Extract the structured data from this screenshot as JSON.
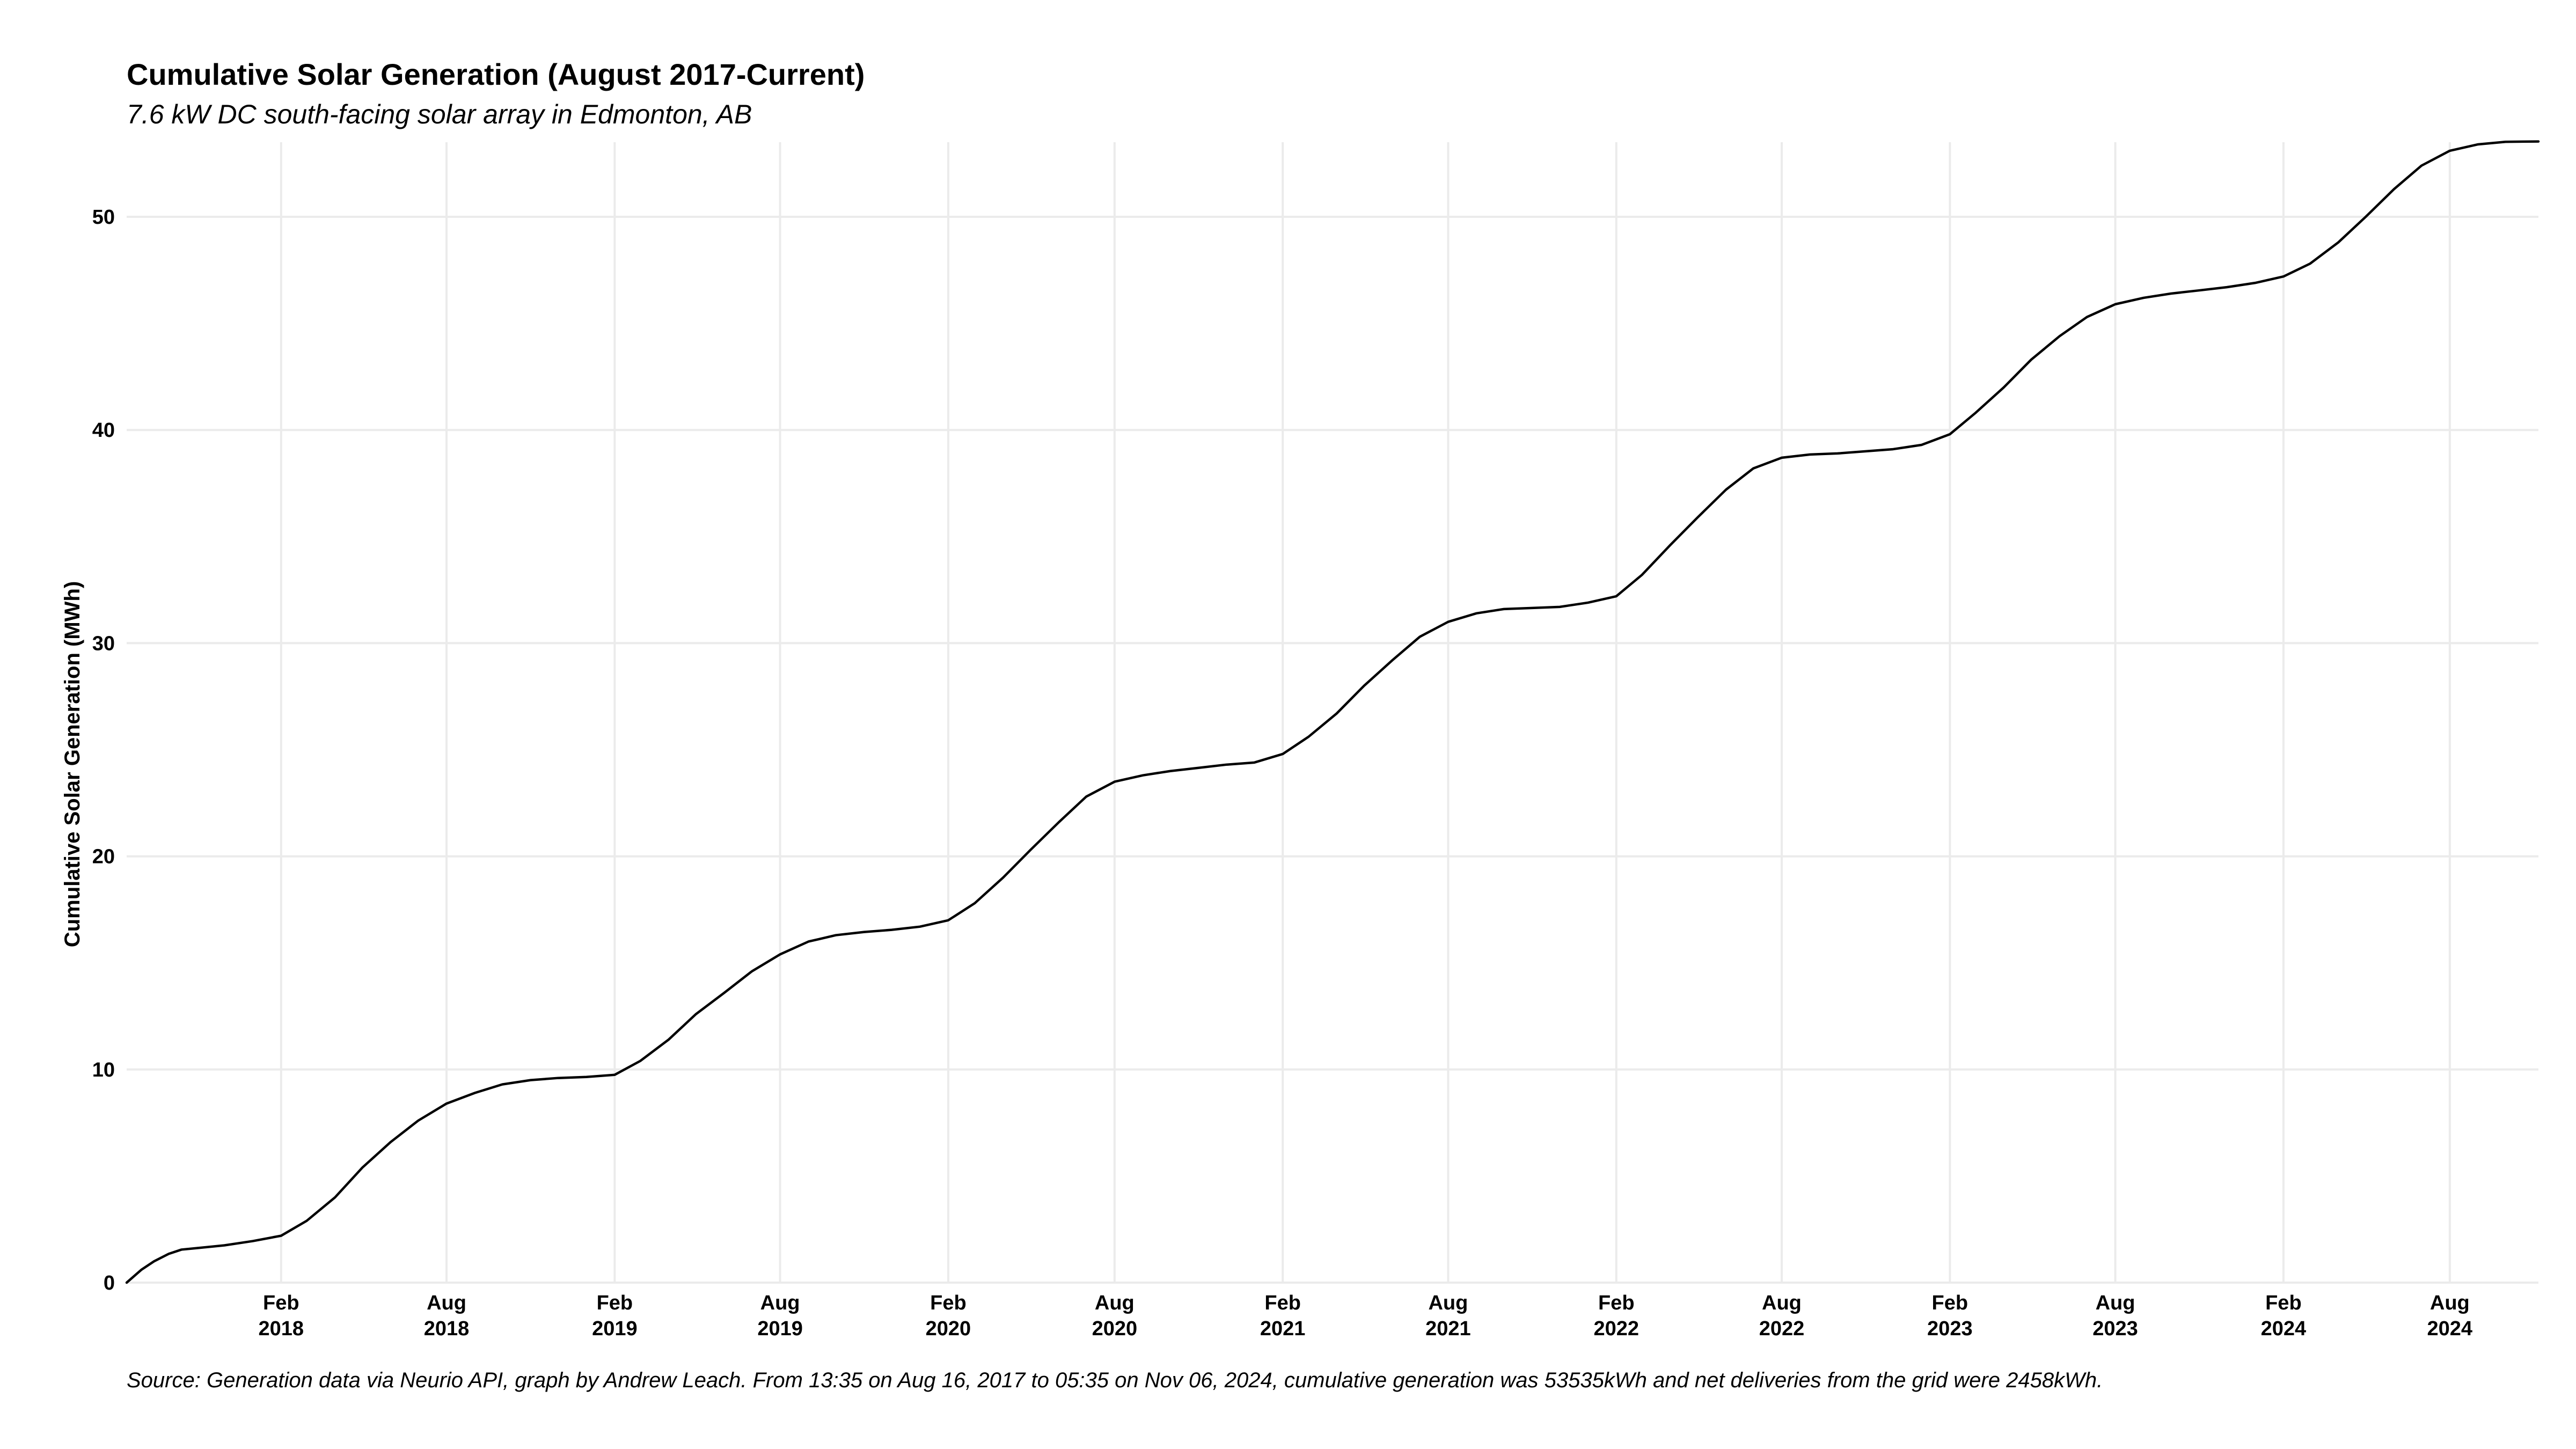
{
  "chart_data": {
    "type": "line",
    "title": "Cumulative Solar Generation (August 2017-Current)",
    "subtitle": "7.6 kW DC south-facing solar array in Edmonton, AB",
    "caption": "Source: Generation data via Neurio API, graph by Andrew Leach. From 13:35 on Aug 16, 2017 to 05:35 on Nov 06, 2024, cumulative generation was 53535kWh and net deliveries from the grid were 2458kWh.",
    "xlabel": "",
    "ylabel": "Cumulative Solar Generation (MWh)",
    "xlim": [
      "2017-08-16",
      "2024-11-06"
    ],
    "ylim": [
      0,
      53.5
    ],
    "grid": true,
    "legend": "none",
    "y_ticks": [
      0,
      10,
      20,
      30,
      40,
      50
    ],
    "x_ticks": [
      {
        "date": "2018-02-01",
        "month": "Feb",
        "year": "2018"
      },
      {
        "date": "2018-08-01",
        "month": "Aug",
        "year": "2018"
      },
      {
        "date": "2019-02-01",
        "month": "Feb",
        "year": "2019"
      },
      {
        "date": "2019-08-01",
        "month": "Aug",
        "year": "2019"
      },
      {
        "date": "2020-02-01",
        "month": "Feb",
        "year": "2020"
      },
      {
        "date": "2020-08-01",
        "month": "Aug",
        "year": "2020"
      },
      {
        "date": "2021-02-01",
        "month": "Feb",
        "year": "2021"
      },
      {
        "date": "2021-08-01",
        "month": "Aug",
        "year": "2021"
      },
      {
        "date": "2022-02-01",
        "month": "Feb",
        "year": "2022"
      },
      {
        "date": "2022-08-01",
        "month": "Aug",
        "year": "2022"
      },
      {
        "date": "2023-02-01",
        "month": "Feb",
        "year": "2023"
      },
      {
        "date": "2023-08-01",
        "month": "Aug",
        "year": "2023"
      },
      {
        "date": "2024-02-01",
        "month": "Feb",
        "year": "2024"
      },
      {
        "date": "2024-08-01",
        "month": "Aug",
        "year": "2024"
      }
    ],
    "series": [
      {
        "color": "#000000",
        "points": [
          {
            "x": "2017-08-16",
            "y": 0.0
          },
          {
            "x": "2017-09-01",
            "y": 0.6
          },
          {
            "x": "2017-09-15",
            "y": 1.0
          },
          {
            "x": "2017-10-01",
            "y": 1.35
          },
          {
            "x": "2017-10-15",
            "y": 1.55
          },
          {
            "x": "2017-11-01",
            "y": 1.62
          },
          {
            "x": "2017-12-01",
            "y": 1.75
          },
          {
            "x": "2018-01-01",
            "y": 1.95
          },
          {
            "x": "2018-02-01",
            "y": 2.2
          },
          {
            "x": "2018-03-01",
            "y": 2.9
          },
          {
            "x": "2018-04-01",
            "y": 4.0
          },
          {
            "x": "2018-05-01",
            "y": 5.4
          },
          {
            "x": "2018-06-01",
            "y": 6.6
          },
          {
            "x": "2018-07-01",
            "y": 7.6
          },
          {
            "x": "2018-08-01",
            "y": 8.4
          },
          {
            "x": "2018-09-01",
            "y": 8.9
          },
          {
            "x": "2018-10-01",
            "y": 9.3
          },
          {
            "x": "2018-11-01",
            "y": 9.5
          },
          {
            "x": "2018-12-01",
            "y": 9.6
          },
          {
            "x": "2019-01-01",
            "y": 9.65
          },
          {
            "x": "2019-02-01",
            "y": 9.75
          },
          {
            "x": "2019-03-01",
            "y": 10.4
          },
          {
            "x": "2019-04-01",
            "y": 11.4
          },
          {
            "x": "2019-05-01",
            "y": 12.6
          },
          {
            "x": "2019-06-01",
            "y": 13.6
          },
          {
            "x": "2019-07-01",
            "y": 14.6
          },
          {
            "x": "2019-08-01",
            "y": 15.4
          },
          {
            "x": "2019-09-01",
            "y": 16.0
          },
          {
            "x": "2019-10-01",
            "y": 16.3
          },
          {
            "x": "2019-11-01",
            "y": 16.45
          },
          {
            "x": "2019-12-01",
            "y": 16.55
          },
          {
            "x": "2020-01-01",
            "y": 16.7
          },
          {
            "x": "2020-02-01",
            "y": 17.0
          },
          {
            "x": "2020-03-01",
            "y": 17.8
          },
          {
            "x": "2020-04-01",
            "y": 19.0
          },
          {
            "x": "2020-05-01",
            "y": 20.3
          },
          {
            "x": "2020-06-01",
            "y": 21.6
          },
          {
            "x": "2020-07-01",
            "y": 22.8
          },
          {
            "x": "2020-08-01",
            "y": 23.5
          },
          {
            "x": "2020-09-01",
            "y": 23.8
          },
          {
            "x": "2020-10-01",
            "y": 24.0
          },
          {
            "x": "2020-11-01",
            "y": 24.15
          },
          {
            "x": "2020-12-01",
            "y": 24.3
          },
          {
            "x": "2021-01-01",
            "y": 24.4
          },
          {
            "x": "2021-02-01",
            "y": 24.8
          },
          {
            "x": "2021-03-01",
            "y": 25.6
          },
          {
            "x": "2021-04-01",
            "y": 26.7
          },
          {
            "x": "2021-05-01",
            "y": 28.0
          },
          {
            "x": "2021-06-01",
            "y": 29.2
          },
          {
            "x": "2021-07-01",
            "y": 30.3
          },
          {
            "x": "2021-08-01",
            "y": 31.0
          },
          {
            "x": "2021-09-01",
            "y": 31.4
          },
          {
            "x": "2021-10-01",
            "y": 31.6
          },
          {
            "x": "2021-11-01",
            "y": 31.65
          },
          {
            "x": "2021-12-01",
            "y": 31.7
          },
          {
            "x": "2022-01-01",
            "y": 31.9
          },
          {
            "x": "2022-02-01",
            "y": 32.2
          },
          {
            "x": "2022-03-01",
            "y": 33.2
          },
          {
            "x": "2022-04-01",
            "y": 34.6
          },
          {
            "x": "2022-05-01",
            "y": 35.9
          },
          {
            "x": "2022-06-01",
            "y": 37.2
          },
          {
            "x": "2022-07-01",
            "y": 38.2
          },
          {
            "x": "2022-08-01",
            "y": 38.7
          },
          {
            "x": "2022-09-01",
            "y": 38.85
          },
          {
            "x": "2022-10-01",
            "y": 38.9
          },
          {
            "x": "2022-11-01",
            "y": 39.0
          },
          {
            "x": "2022-12-01",
            "y": 39.1
          },
          {
            "x": "2023-01-01",
            "y": 39.3
          },
          {
            "x": "2023-02-01",
            "y": 39.8
          },
          {
            "x": "2023-03-01",
            "y": 40.8
          },
          {
            "x": "2023-04-01",
            "y": 42.0
          },
          {
            "x": "2023-05-01",
            "y": 43.3
          },
          {
            "x": "2023-06-01",
            "y": 44.4
          },
          {
            "x": "2023-07-01",
            "y": 45.3
          },
          {
            "x": "2023-08-01",
            "y": 45.9
          },
          {
            "x": "2023-09-01",
            "y": 46.2
          },
          {
            "x": "2023-10-01",
            "y": 46.4
          },
          {
            "x": "2023-11-01",
            "y": 46.55
          },
          {
            "x": "2023-12-01",
            "y": 46.7
          },
          {
            "x": "2024-01-01",
            "y": 46.9
          },
          {
            "x": "2024-02-01",
            "y": 47.2
          },
          {
            "x": "2024-03-01",
            "y": 47.8
          },
          {
            "x": "2024-04-01",
            "y": 48.8
          },
          {
            "x": "2024-05-01",
            "y": 50.0
          },
          {
            "x": "2024-06-01",
            "y": 51.3
          },
          {
            "x": "2024-07-01",
            "y": 52.4
          },
          {
            "x": "2024-08-01",
            "y": 53.1
          },
          {
            "x": "2024-09-01",
            "y": 53.4
          },
          {
            "x": "2024-10-01",
            "y": 53.52
          },
          {
            "x": "2024-11-06",
            "y": 53.535
          }
        ]
      }
    ]
  }
}
